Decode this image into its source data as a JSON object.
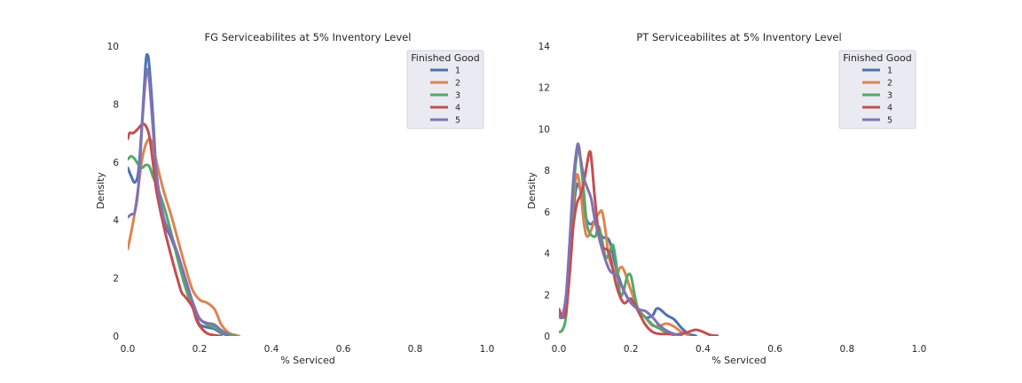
{
  "figure": {
    "charts": [
      {
        "title": "FG Serviceabilites at 5% Inventory Level",
        "xlabel": "% Serviced",
        "ylabel": "Density"
      },
      {
        "title": "PT Serviceabilites at 5% Inventory Level",
        "xlabel": "% Serviced",
        "ylabel": "Density"
      }
    ]
  },
  "chart_data": [
    {
      "type": "line",
      "title": "FG Serviceabilites at 5% Inventory Level",
      "xlabel": "% Serviced",
      "ylabel": "Density",
      "xlim": [
        0,
        1.0
      ],
      "ylim": [
        0,
        10
      ],
      "xticks": [
        0.0,
        0.2,
        0.4,
        0.6,
        0.8,
        1.0
      ],
      "xtick_labels": [
        "0.0",
        "0.2",
        "0.4",
        "0.6",
        "0.8",
        "1.0"
      ],
      "yticks": [
        0,
        2,
        4,
        6,
        8,
        10
      ],
      "ytick_labels": [
        "0",
        "2",
        "4",
        "6",
        "8",
        "10"
      ],
      "grid": false,
      "legend": {
        "title": "Finished Good",
        "placement": "upper-right"
      },
      "series": [
        {
          "name": "1",
          "color": "#4c72b0",
          "points": [
            [
              0,
              5.8
            ],
            [
              0.01,
              5.5
            ],
            [
              0.02,
              5.3
            ],
            [
              0.03,
              5.7
            ],
            [
              0.04,
              7.4
            ],
            [
              0.05,
              9.4
            ],
            [
              0.055,
              9.7
            ],
            [
              0.06,
              9.3
            ],
            [
              0.07,
              7.6
            ],
            [
              0.08,
              5.5
            ],
            [
              0.09,
              4.4
            ],
            [
              0.1,
              3.9
            ],
            [
              0.12,
              3.4
            ],
            [
              0.14,
              2.7
            ],
            [
              0.16,
              1.9
            ],
            [
              0.18,
              1.1
            ],
            [
              0.19,
              0.7
            ],
            [
              0.2,
              0.4
            ],
            [
              0.22,
              0.3
            ],
            [
              0.24,
              0.25
            ],
            [
              0.26,
              0.1
            ],
            [
              0.28,
              0.02
            ]
          ]
        },
        {
          "name": "2",
          "color": "#dd8452",
          "points": [
            [
              0,
              3.0
            ],
            [
              0.01,
              3.6
            ],
            [
              0.02,
              4.3
            ],
            [
              0.03,
              5.2
            ],
            [
              0.04,
              6.1
            ],
            [
              0.05,
              6.6
            ],
            [
              0.06,
              6.8
            ],
            [
              0.07,
              6.6
            ],
            [
              0.08,
              6.0
            ],
            [
              0.1,
              5.0
            ],
            [
              0.12,
              4.2
            ],
            [
              0.14,
              3.3
            ],
            [
              0.16,
              2.4
            ],
            [
              0.18,
              1.6
            ],
            [
              0.2,
              1.25
            ],
            [
              0.22,
              1.15
            ],
            [
              0.24,
              0.95
            ],
            [
              0.25,
              0.7
            ],
            [
              0.26,
              0.4
            ],
            [
              0.28,
              0.12
            ],
            [
              0.3,
              0.03
            ],
            [
              0.31,
              0.0
            ]
          ]
        },
        {
          "name": "3",
          "color": "#55a868",
          "points": [
            [
              0,
              6.1
            ],
            [
              0.01,
              6.2
            ],
            [
              0.02,
              6.1
            ],
            [
              0.03,
              5.9
            ],
            [
              0.04,
              5.8
            ],
            [
              0.05,
              5.9
            ],
            [
              0.06,
              5.85
            ],
            [
              0.07,
              5.5
            ],
            [
              0.08,
              5.2
            ],
            [
              0.1,
              4.5
            ],
            [
              0.12,
              3.6
            ],
            [
              0.14,
              2.6
            ],
            [
              0.16,
              1.7
            ],
            [
              0.18,
              1.0
            ],
            [
              0.2,
              0.6
            ],
            [
              0.22,
              0.4
            ],
            [
              0.24,
              0.3
            ],
            [
              0.26,
              0.15
            ],
            [
              0.28,
              0.05
            ],
            [
              0.3,
              0.01
            ]
          ]
        },
        {
          "name": "4",
          "color": "#c44e52",
          "points": [
            [
              0,
              6.8
            ],
            [
              0.005,
              7.0
            ],
            [
              0.015,
              7.0
            ],
            [
              0.025,
              7.1
            ],
            [
              0.04,
              7.3
            ],
            [
              0.05,
              7.25
            ],
            [
              0.06,
              6.9
            ],
            [
              0.07,
              6.0
            ],
            [
              0.08,
              5.0
            ],
            [
              0.1,
              3.8
            ],
            [
              0.12,
              2.8
            ],
            [
              0.14,
              1.9
            ],
            [
              0.15,
              1.5
            ],
            [
              0.16,
              1.35
            ],
            [
              0.18,
              1.0
            ],
            [
              0.19,
              0.6
            ],
            [
              0.2,
              0.35
            ],
            [
              0.22,
              0.1
            ],
            [
              0.24,
              0.03
            ],
            [
              0.26,
              0.0
            ]
          ]
        },
        {
          "name": "5",
          "color": "#8172b3",
          "points": [
            [
              0,
              4.1
            ],
            [
              0.01,
              4.2
            ],
            [
              0.02,
              4.3
            ],
            [
              0.03,
              5.2
            ],
            [
              0.04,
              7.3
            ],
            [
              0.05,
              8.9
            ],
            [
              0.055,
              9.2
            ],
            [
              0.06,
              8.8
            ],
            [
              0.07,
              7.2
            ],
            [
              0.08,
              5.6
            ],
            [
              0.1,
              4.1
            ],
            [
              0.12,
              3.5
            ],
            [
              0.14,
              2.8
            ],
            [
              0.16,
              2.0
            ],
            [
              0.18,
              1.2
            ],
            [
              0.2,
              0.6
            ],
            [
              0.22,
              0.45
            ],
            [
              0.24,
              0.4
            ],
            [
              0.26,
              0.2
            ],
            [
              0.28,
              0.05
            ]
          ]
        }
      ]
    },
    {
      "type": "line",
      "title": "PT Serviceabilites at 5% Inventory Level",
      "xlabel": "% Serviced",
      "ylabel": "Density",
      "xlim": [
        0,
        1.0
      ],
      "ylim": [
        0,
        14
      ],
      "xticks": [
        0.0,
        0.2,
        0.4,
        0.6,
        0.8,
        1.0
      ],
      "xtick_labels": [
        "0.0",
        "0.2",
        "0.4",
        "0.6",
        "0.8",
        "1.0"
      ],
      "yticks": [
        0,
        2,
        4,
        6,
        8,
        10,
        12,
        14
      ],
      "ytick_labels": [
        "0",
        "2",
        "4",
        "6",
        "8",
        "10",
        "12",
        "14"
      ],
      "grid": false,
      "legend": {
        "title": "Finished Good",
        "placement": "upper-right"
      },
      "series": [
        {
          "name": "1",
          "color": "#4c72b0",
          "points": [
            [
              0,
              1.0
            ],
            [
              0.01,
              0.9
            ],
            [
              0.02,
              1.6
            ],
            [
              0.03,
              3.5
            ],
            [
              0.04,
              6.0
            ],
            [
              0.05,
              7.3
            ],
            [
              0.06,
              7.0
            ],
            [
              0.07,
              6.0
            ],
            [
              0.08,
              5.5
            ],
            [
              0.09,
              5.4
            ],
            [
              0.1,
              5.5
            ],
            [
              0.12,
              4.8
            ],
            [
              0.14,
              4.6
            ],
            [
              0.16,
              3.2
            ],
            [
              0.18,
              2.2
            ],
            [
              0.2,
              1.6
            ],
            [
              0.22,
              1.3
            ],
            [
              0.24,
              0.9
            ],
            [
              0.26,
              1.0
            ],
            [
              0.27,
              1.3
            ],
            [
              0.28,
              1.3
            ],
            [
              0.3,
              1.0
            ],
            [
              0.32,
              0.8
            ],
            [
              0.34,
              0.4
            ],
            [
              0.36,
              0.1
            ],
            [
              0.38,
              0.02
            ]
          ]
        },
        {
          "name": "2",
          "color": "#dd8452",
          "points": [
            [
              0,
              1.3
            ],
            [
              0.01,
              1.0
            ],
            [
              0.02,
              1.8
            ],
            [
              0.03,
              4.0
            ],
            [
              0.04,
              6.5
            ],
            [
              0.05,
              7.8
            ],
            [
              0.06,
              7.0
            ],
            [
              0.07,
              5.4
            ],
            [
              0.08,
              4.8
            ],
            [
              0.1,
              5.6
            ],
            [
              0.11,
              5.9
            ],
            [
              0.12,
              6.0
            ],
            [
              0.13,
              5.0
            ],
            [
              0.14,
              3.7
            ],
            [
              0.16,
              3.0
            ],
            [
              0.17,
              3.3
            ],
            [
              0.18,
              3.2
            ],
            [
              0.2,
              2.2
            ],
            [
              0.22,
              1.3
            ],
            [
              0.24,
              0.9
            ],
            [
              0.26,
              0.5
            ],
            [
              0.28,
              0.5
            ],
            [
              0.3,
              0.6
            ],
            [
              0.32,
              0.45
            ],
            [
              0.34,
              0.2
            ],
            [
              0.36,
              0.05
            ]
          ]
        },
        {
          "name": "3",
          "color": "#55a868",
          "points": [
            [
              0,
              0.2
            ],
            [
              0.01,
              0.3
            ],
            [
              0.02,
              1.0
            ],
            [
              0.03,
              3.5
            ],
            [
              0.04,
              7.0
            ],
            [
              0.05,
              8.8
            ],
            [
              0.055,
              9.0
            ],
            [
              0.06,
              8.5
            ],
            [
              0.07,
              6.8
            ],
            [
              0.08,
              5.2
            ],
            [
              0.1,
              4.8
            ],
            [
              0.11,
              5.3
            ],
            [
              0.12,
              4.6
            ],
            [
              0.13,
              3.8
            ],
            [
              0.14,
              4.0
            ],
            [
              0.15,
              4.4
            ],
            [
              0.16,
              3.4
            ],
            [
              0.17,
              2.0
            ],
            [
              0.18,
              2.2
            ],
            [
              0.19,
              2.9
            ],
            [
              0.2,
              2.9
            ],
            [
              0.21,
              2.0
            ],
            [
              0.22,
              1.3
            ],
            [
              0.24,
              0.9
            ],
            [
              0.26,
              0.55
            ],
            [
              0.28,
              0.35
            ],
            [
              0.3,
              0.15
            ],
            [
              0.32,
              0.05
            ]
          ]
        },
        {
          "name": "4",
          "color": "#c44e52",
          "points": [
            [
              0,
              1.3
            ],
            [
              0.01,
              0.9
            ],
            [
              0.02,
              1.2
            ],
            [
              0.03,
              3.0
            ],
            [
              0.04,
              5.3
            ],
            [
              0.05,
              6.4
            ],
            [
              0.06,
              6.8
            ],
            [
              0.07,
              7.5
            ],
            [
              0.08,
              8.5
            ],
            [
              0.085,
              8.9
            ],
            [
              0.09,
              8.6
            ],
            [
              0.1,
              6.6
            ],
            [
              0.11,
              5.0
            ],
            [
              0.12,
              4.3
            ],
            [
              0.14,
              4.0
            ],
            [
              0.16,
              2.4
            ],
            [
              0.18,
              1.6
            ],
            [
              0.2,
              1.8
            ],
            [
              0.22,
              1.2
            ],
            [
              0.24,
              0.55
            ],
            [
              0.26,
              0.2
            ],
            [
              0.28,
              0.1
            ],
            [
              0.3,
              0.1
            ],
            [
              0.32,
              0.08
            ],
            [
              0.34,
              0.1
            ],
            [
              0.36,
              0.2
            ],
            [
              0.38,
              0.3
            ],
            [
              0.4,
              0.2
            ],
            [
              0.42,
              0.05
            ],
            [
              0.44,
              0.01
            ]
          ]
        },
        {
          "name": "5",
          "color": "#8172b3",
          "points": [
            [
              0,
              0.9
            ],
            [
              0.01,
              1.0
            ],
            [
              0.02,
              2.0
            ],
            [
              0.03,
              4.6
            ],
            [
              0.04,
              7.5
            ],
            [
              0.05,
              9.1
            ],
            [
              0.055,
              9.2
            ],
            [
              0.06,
              8.6
            ],
            [
              0.07,
              7.6
            ],
            [
              0.08,
              7.1
            ],
            [
              0.09,
              6.6
            ],
            [
              0.1,
              5.6
            ],
            [
              0.12,
              4.2
            ],
            [
              0.14,
              3.2
            ],
            [
              0.16,
              2.9
            ],
            [
              0.18,
              2.2
            ],
            [
              0.2,
              1.6
            ],
            [
              0.22,
              1.3
            ],
            [
              0.24,
              1.2
            ],
            [
              0.26,
              0.9
            ],
            [
              0.28,
              0.5
            ],
            [
              0.3,
              0.25
            ],
            [
              0.32,
              0.1
            ],
            [
              0.34,
              0.03
            ]
          ]
        }
      ]
    }
  ]
}
